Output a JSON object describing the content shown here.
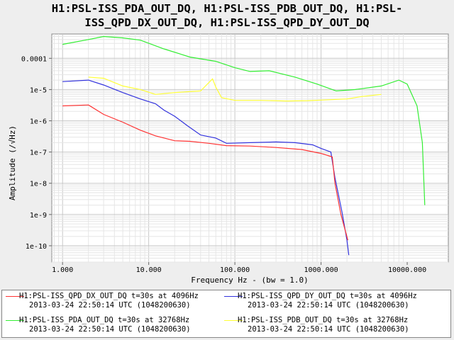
{
  "chart_data": {
    "type": "line",
    "title_lines": [
      "H1:PSL-ISS_PDA_OUT_DQ, H1:PSL-ISS_PDB_OUT_DQ, H1:PSL-",
      "ISS_QPD_DX_OUT_DQ, H1:PSL-ISS_QPD_DY_OUT_DQ"
    ],
    "xlabel": "Frequency Hz - (bw = 1.0)",
    "ylabel": "Amplitude  (/√Hz)",
    "x_scale": "log",
    "y_scale": "log",
    "xlim": [
      0.75,
      30000
    ],
    "ylim": [
      3e-11,
      0.0006
    ],
    "x_ticks": [
      1,
      10,
      100,
      1000,
      10000
    ],
    "x_tick_labels": [
      "1.000",
      "10.000",
      "100.000",
      "1000.000",
      "10000.000"
    ],
    "y_ticks": [
      1e-10,
      1e-09,
      1e-08,
      1e-07,
      1e-06,
      1e-05,
      0.0001
    ],
    "y_tick_labels": [
      "1e-10",
      "1e-9",
      "1e-8",
      "1e-7",
      "1e-6",
      "1e-5",
      "0.0001"
    ],
    "grid": true,
    "legend_position": "bottom",
    "series": [
      {
        "name": "H1:PSL-ISS_QPD_DX_OUT_DQ",
        "color": "#ff3333",
        "points": [
          [
            1,
            3e-06
          ],
          [
            2,
            3.2e-06
          ],
          [
            3,
            1.6e-06
          ],
          [
            5,
            9e-07
          ],
          [
            8,
            5e-07
          ],
          [
            12,
            3.3e-07
          ],
          [
            20,
            2.3e-07
          ],
          [
            30,
            2.2e-07
          ],
          [
            50,
            1.9e-07
          ],
          [
            80,
            1.6e-07
          ],
          [
            150,
            1.55e-07
          ],
          [
            300,
            1.4e-07
          ],
          [
            600,
            1.2e-07
          ],
          [
            1000,
            9e-08
          ],
          [
            1350,
            7e-08
          ],
          [
            1450,
            1e-08
          ],
          [
            1700,
            1e-09
          ],
          [
            2050,
            1.5e-10
          ]
        ]
      },
      {
        "name": "H1:PSL-ISS_QPD_DY_OUT_DQ",
        "color": "#3333dd",
        "points": [
          [
            1,
            1.8e-05
          ],
          [
            2,
            2e-05
          ],
          [
            3,
            1.4e-05
          ],
          [
            5,
            8e-06
          ],
          [
            8,
            5e-06
          ],
          [
            12,
            3.5e-06
          ],
          [
            15,
            2.2e-06
          ],
          [
            20,
            1.4e-06
          ],
          [
            28,
            7e-07
          ],
          [
            40,
            3.5e-07
          ],
          [
            60,
            2.8e-07
          ],
          [
            80,
            1.9e-07
          ],
          [
            150,
            2e-07
          ],
          [
            300,
            2.1e-07
          ],
          [
            500,
            2e-07
          ],
          [
            800,
            1.7e-07
          ],
          [
            1000,
            1.3e-07
          ],
          [
            1300,
            1e-07
          ],
          [
            1450,
            1.5e-08
          ],
          [
            1750,
            1.2e-09
          ],
          [
            2000,
            1.5e-10
          ],
          [
            2100,
            5e-11
          ]
        ]
      },
      {
        "name": "H1:PSL-ISS_PDA_OUT_DQ",
        "color": "#33ee33",
        "points": [
          [
            1,
            0.00028
          ],
          [
            2,
            0.0004
          ],
          [
            3,
            0.0005
          ],
          [
            5,
            0.00045
          ],
          [
            8,
            0.00038
          ],
          [
            15,
            0.0002
          ],
          [
            30,
            0.00011
          ],
          [
            60,
            8e-05
          ],
          [
            100,
            5e-05
          ],
          [
            150,
            3.8e-05
          ],
          [
            250,
            4e-05
          ],
          [
            500,
            2.5e-05
          ],
          [
            900,
            1.5e-05
          ],
          [
            1500,
            9e-06
          ],
          [
            2500,
            1e-05
          ],
          [
            5000,
            1.3e-05
          ],
          [
            8000,
            2e-05
          ],
          [
            10000,
            1.5e-05
          ],
          [
            13000,
            3e-06
          ],
          [
            15000,
            2e-07
          ],
          [
            16000,
            2e-09
          ]
        ]
      },
      {
        "name": "H1:PSL-ISS_PDB_OUT_DQ",
        "color": "#ffff33",
        "points": [
          [
            2,
            2.5e-05
          ],
          [
            3,
            2.3e-05
          ],
          [
            5,
            1.3e-05
          ],
          [
            8,
            1e-05
          ],
          [
            12,
            7e-06
          ],
          [
            20,
            8e-06
          ],
          [
            40,
            9e-06
          ],
          [
            55,
            2.2e-05
          ],
          [
            60,
            1.2e-05
          ],
          [
            70,
            5.5e-06
          ],
          [
            100,
            4.5e-06
          ],
          [
            200,
            4.5e-06
          ],
          [
            400,
            4.3e-06
          ],
          [
            700,
            4.4e-06
          ],
          [
            1000,
            4.6e-06
          ],
          [
            2000,
            5e-06
          ],
          [
            3000,
            6e-06
          ],
          [
            5000,
            7e-06
          ]
        ]
      }
    ]
  },
  "legend": [
    {
      "color": "#ff3333",
      "line1": "H1:PSL-ISS_QPD_DX_OUT_DQ t=30s at 4096Hz",
      "line2": "2013-03-24 22:50:14 UTC (1048200630)"
    },
    {
      "color": "#3333dd",
      "line1": "H1:PSL-ISS_QPD_DY_OUT_DQ t=30s at 4096Hz",
      "line2": "2013-03-24 22:50:14 UTC (1048200630)"
    },
    {
      "color": "#33ee33",
      "line1": "H1:PSL-ISS_PDA_OUT_DQ t=30s at 32768Hz",
      "line2": "2013-03-24 22:50:14 UTC (1048200630)"
    },
    {
      "color": "#ffff33",
      "line1": "H1:PSL-ISS_PDB_OUT_DQ t=30s at 32768Hz",
      "line2": "2013-03-24 22:50:14 UTC (1048200630)"
    }
  ]
}
